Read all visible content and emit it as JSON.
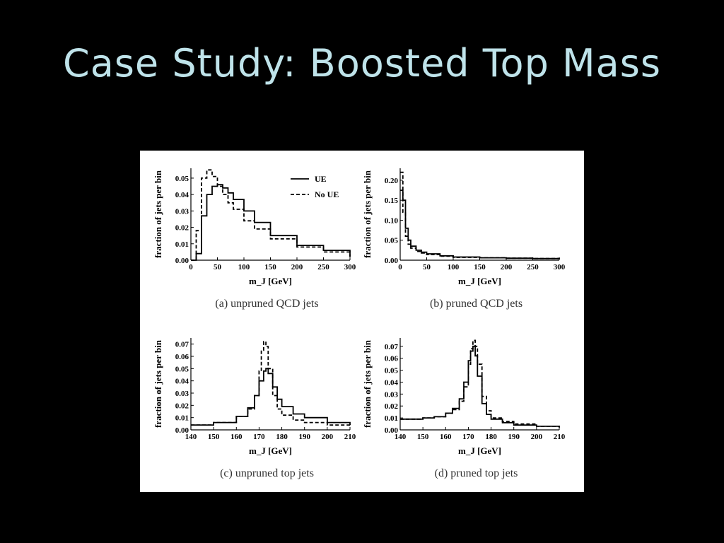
{
  "slide": {
    "title": "Case Study: Boosted Top Mass"
  },
  "chart_data": [
    {
      "type": "line",
      "caption": "(a) unpruned QCD jets",
      "xlabel": "m_J [GeV]",
      "ylabel": "fraction of jets per bin",
      "xlim": [
        0,
        300
      ],
      "ylim": [
        0,
        0.056
      ],
      "xticks": [
        0,
        50,
        100,
        150,
        200,
        250,
        300
      ],
      "yticks": [
        0.0,
        0.01,
        0.02,
        0.03,
        0.04,
        0.05
      ],
      "legend": {
        "position": "top-right",
        "entries": [
          "UE",
          "No UE"
        ]
      },
      "series": [
        {
          "name": "UE",
          "style": "solid",
          "x": [
            0,
            10,
            20,
            30,
            40,
            50,
            60,
            70,
            80,
            100,
            120,
            150,
            200,
            250,
            300
          ],
          "y": [
            0.0,
            0.004,
            0.027,
            0.04,
            0.045,
            0.046,
            0.044,
            0.041,
            0.037,
            0.03,
            0.023,
            0.015,
            0.009,
            0.006,
            0.002
          ]
        },
        {
          "name": "No UE",
          "style": "dashed",
          "x": [
            0,
            10,
            20,
            30,
            40,
            50,
            60,
            70,
            80,
            100,
            120,
            150,
            200,
            250,
            300
          ],
          "y": [
            0.0,
            0.018,
            0.05,
            0.055,
            0.051,
            0.045,
            0.04,
            0.035,
            0.031,
            0.024,
            0.019,
            0.013,
            0.008,
            0.005,
            0.002
          ]
        }
      ]
    },
    {
      "type": "line",
      "caption": "(b) pruned QCD jets",
      "xlabel": "m_J [GeV]",
      "ylabel": "fraction of jets per bin",
      "xlim": [
        0,
        300
      ],
      "ylim": [
        0,
        0.23
      ],
      "xticks": [
        0,
        50,
        100,
        150,
        200,
        250,
        300
      ],
      "yticks": [
        0.0,
        0.05,
        0.1,
        0.15,
        0.2
      ],
      "series": [
        {
          "name": "UE",
          "style": "solid",
          "x": [
            0,
            5,
            10,
            15,
            20,
            30,
            40,
            50,
            75,
            100,
            150,
            200,
            250,
            300
          ],
          "y": [
            0.175,
            0.15,
            0.08,
            0.05,
            0.035,
            0.025,
            0.02,
            0.016,
            0.011,
            0.008,
            0.006,
            0.005,
            0.004,
            0.003
          ]
        },
        {
          "name": "No UE",
          "style": "dashed",
          "x": [
            0,
            5,
            10,
            15,
            20,
            30,
            40,
            50,
            75,
            100,
            150,
            200,
            250,
            300
          ],
          "y": [
            0.22,
            0.12,
            0.06,
            0.04,
            0.03,
            0.022,
            0.018,
            0.014,
            0.01,
            0.007,
            0.006,
            0.005,
            0.004,
            0.003
          ]
        }
      ]
    },
    {
      "type": "line",
      "caption": "(c) unpruned top jets",
      "xlabel": "m_J [GeV]",
      "ylabel": "fraction of jets per bin",
      "xlim": [
        140,
        210
      ],
      "ylim": [
        0,
        0.075
      ],
      "xticks": [
        140,
        150,
        160,
        170,
        180,
        190,
        200,
        210
      ],
      "yticks": [
        0.0,
        0.01,
        0.02,
        0.03,
        0.04,
        0.05,
        0.06,
        0.07
      ],
      "series": [
        {
          "name": "UE",
          "style": "solid",
          "x": [
            140,
            150,
            160,
            165,
            168,
            170,
            172,
            173,
            174,
            176,
            178,
            180,
            185,
            190,
            200,
            210
          ],
          "y": [
            0.004,
            0.006,
            0.011,
            0.018,
            0.028,
            0.04,
            0.048,
            0.05,
            0.046,
            0.035,
            0.025,
            0.019,
            0.013,
            0.01,
            0.006,
            0.004
          ]
        },
        {
          "name": "No UE",
          "style": "dashed",
          "x": [
            140,
            150,
            160,
            165,
            168,
            170,
            171,
            172,
            173,
            174,
            176,
            178,
            180,
            185,
            190,
            200,
            210
          ],
          "y": [
            0.004,
            0.006,
            0.011,
            0.017,
            0.028,
            0.048,
            0.065,
            0.072,
            0.068,
            0.05,
            0.028,
            0.017,
            0.012,
            0.008,
            0.006,
            0.004,
            0.003
          ]
        }
      ]
    },
    {
      "type": "line",
      "caption": "(d) pruned top jets",
      "xlabel": "m_J [GeV]",
      "ylabel": "fraction of jets per bin",
      "xlim": [
        140,
        210
      ],
      "ylim": [
        0,
        0.077
      ],
      "xticks": [
        140,
        150,
        160,
        170,
        180,
        190,
        200,
        210
      ],
      "yticks": [
        0.0,
        0.01,
        0.02,
        0.03,
        0.04,
        0.05,
        0.06,
        0.07
      ],
      "series": [
        {
          "name": "UE",
          "style": "solid",
          "x": [
            140,
            150,
            155,
            160,
            163,
            166,
            168,
            170,
            171,
            172,
            173,
            174,
            176,
            178,
            180,
            185,
            190,
            200,
            210
          ],
          "y": [
            0.009,
            0.01,
            0.011,
            0.014,
            0.018,
            0.026,
            0.04,
            0.058,
            0.066,
            0.07,
            0.062,
            0.045,
            0.022,
            0.013,
            0.009,
            0.006,
            0.004,
            0.003,
            0.002
          ]
        },
        {
          "name": "No UE",
          "style": "dashed",
          "x": [
            140,
            150,
            155,
            160,
            163,
            166,
            168,
            170,
            171,
            172,
            173,
            174,
            176,
            178,
            180,
            185,
            190,
            200,
            210
          ],
          "y": [
            0.009,
            0.01,
            0.011,
            0.014,
            0.017,
            0.024,
            0.036,
            0.055,
            0.068,
            0.075,
            0.07,
            0.055,
            0.028,
            0.016,
            0.01,
            0.007,
            0.005,
            0.003,
            0.002
          ]
        }
      ]
    }
  ]
}
